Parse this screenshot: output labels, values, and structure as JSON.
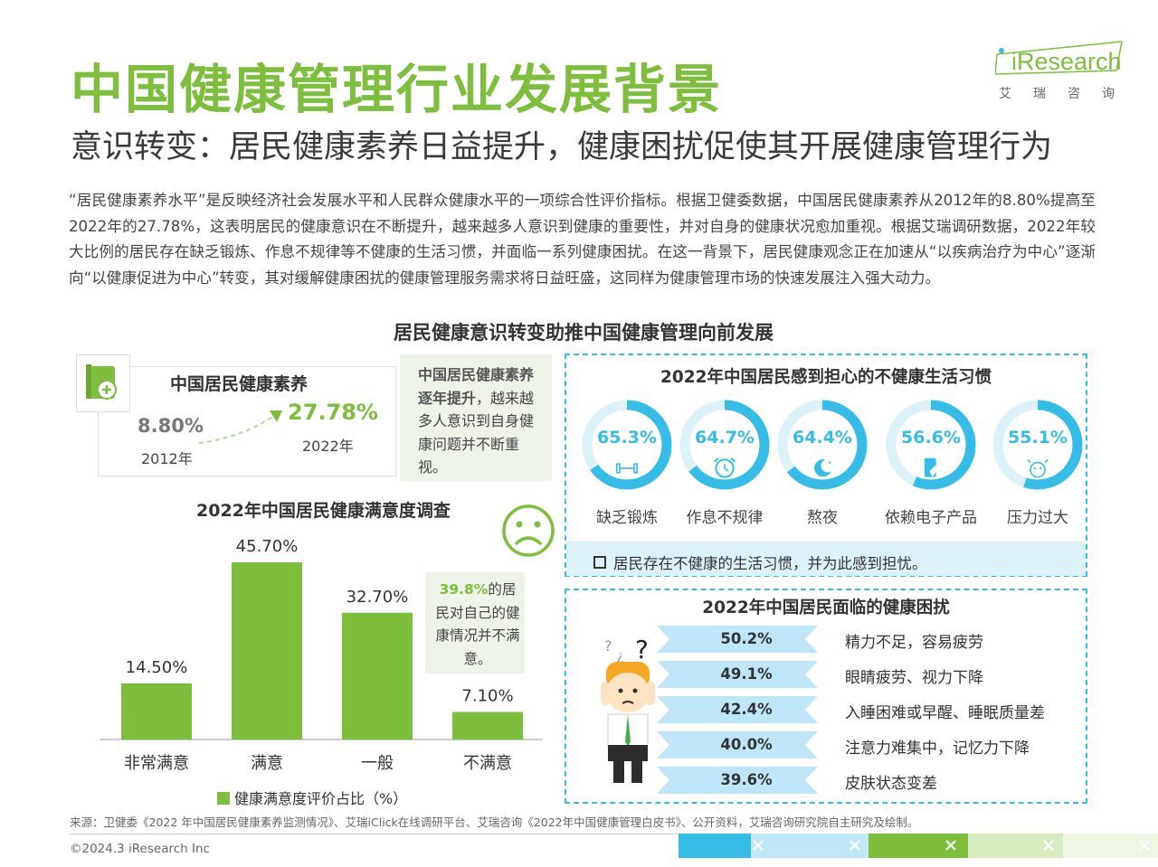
{
  "header": {
    "title": "中国健康管理行业发展背景",
    "subtitle": "意识转变：居民健康素养日益提升，健康困扰促使其开展健康管理行为",
    "logo_text": "iResearch",
    "logo_cn": "艾瑞咨询"
  },
  "intro": "“居民健康素养水平”是反映经济社会发展水平和人民群众健康水平的一项综合性评价指标。根据卫健委数据，中国居民健康素养从2012年的8.80%提高至2022年的27.78%，这表明居民的健康意识在不断提升，越来越多人意识到健康的重要性，并对自身的健康状况愈加重视。根据艾瑞调研数据，2022年较大比例的居民存在缺乏锻炼、作息不规律等不健康的生活习惯，并面临一系列健康困扰。在这一背景下，居民健康观念正在加速从“以疾病治疗为中心”逐渐向“以健康促进为中心”转变，其对缓解健康困扰的健康管理服务需求将日益旺盛，这同样为健康管理市场的快速发展注入强大动力。",
  "section_title": "居民健康意识转变助推中国健康管理向前发展",
  "literacy": {
    "title": "中国居民健康素养",
    "v2012": "8.80%",
    "y2012": "2012年",
    "v2022": "27.78%",
    "y2022": "2022年",
    "note_bold": "中国居民健康素养逐年提升",
    "note_rest": "，越来越多人意识到自身健康问题并不断重视。"
  },
  "satisfaction_note": {
    "highlight": "39.8%",
    "rest": "的居民对自己的健康情况并不满意。"
  },
  "colors": {
    "green": "#7DBE3C",
    "blue": "#35BDE8",
    "light_blue": "#DDF1F9"
  },
  "chart_data": [
    {
      "type": "bar",
      "title": "2022年中国居民健康满意度调查",
      "categories": [
        "非常满意",
        "满意",
        "一般",
        "不满意"
      ],
      "series": [
        {
          "name": "健康满意度评价占比（%）",
          "values": [
            14.5,
            45.7,
            32.7,
            7.1
          ]
        }
      ],
      "value_labels": [
        "14.50%",
        "45.70%",
        "32.70%",
        "7.10%"
      ],
      "legend": "bottom"
    },
    {
      "type": "pie",
      "title": "2022年中国居民感到担心的不健康生活习惯",
      "categories": [
        "缺乏锻炼",
        "作息不规律",
        "熬夜",
        "依赖电子产品",
        "压力过大"
      ],
      "values": [
        65.3,
        64.7,
        64.4,
        56.6,
        55.1
      ],
      "value_labels": [
        "65.3%",
        "64.7%",
        "64.4%",
        "56.6%",
        "55.1%"
      ],
      "icons": [
        "dumbbell-icon",
        "alarm-clock-icon",
        "moon-icon",
        "phone-icon",
        "stress-face-icon"
      ],
      "note": "居民存在不健康的生活习惯，并为此感到担忧。"
    },
    {
      "type": "bar",
      "title": "2022年中国居民面临的健康困扰",
      "categories": [
        "精力不足，容易疲劳",
        "眼睛疲劳、视力下降",
        "入睡困难或早醒、睡眠质量差",
        "注意力难集中，记忆力下降",
        "皮肤状态变差"
      ],
      "values": [
        50.2,
        49.1,
        42.4,
        40.0,
        39.6
      ],
      "value_labels": [
        "50.2%",
        "49.1%",
        "42.4%",
        "40.0%",
        "39.6%"
      ]
    }
  ],
  "source": "来源：卫健委《2022 年中国居民健康素养监测情况》、艾瑞iClick在线调研平台、艾瑞咨询《2022年中国健康管理白皮书》、公开资料，艾瑞咨询研究院自主研究及绘制。",
  "copyright": "©2024.3 iResearch Inc"
}
